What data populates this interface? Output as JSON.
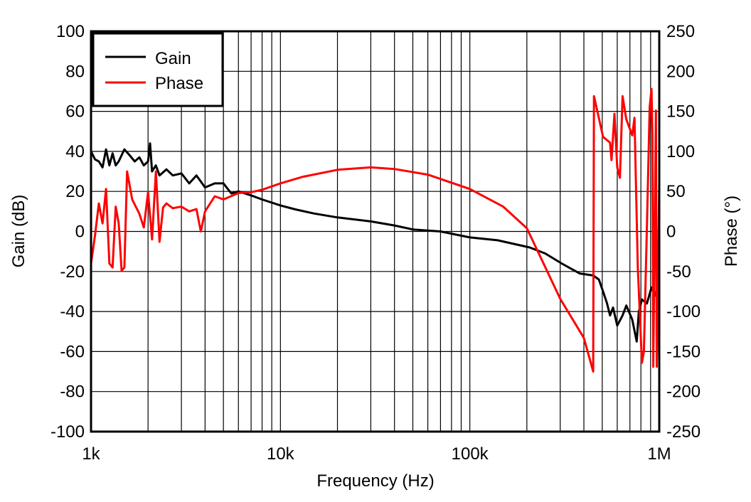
{
  "chart_data": {
    "type": "line",
    "xlabel": "Frequency (Hz)",
    "ylabel": "Gain (dB)",
    "y2label": "Phase (°)",
    "xscale": "log",
    "xlim": [
      1000,
      1000000
    ],
    "ylim": [
      -100,
      100
    ],
    "y2lim": [
      -250,
      250
    ],
    "grid": true,
    "legend_position": "top-left",
    "x_ticks": [
      {
        "v": 1000,
        "label": "1k"
      },
      {
        "v": 10000,
        "label": "10k"
      },
      {
        "v": 100000,
        "label": "100k"
      },
      {
        "v": 1000000,
        "label": "1M"
      }
    ],
    "y_ticks": [
      "-100",
      "-80",
      "-60",
      "-40",
      "-20",
      "0",
      "20",
      "40",
      "60",
      "80",
      "100"
    ],
    "y2_ticks": [
      "-250",
      "-200",
      "-150",
      "-100",
      "-50",
      "0",
      "50",
      "100",
      "150",
      "200",
      "250"
    ],
    "series": [
      {
        "name": "Gain",
        "axis": "left",
        "color": "#000000",
        "x": [
          1000,
          1050,
          1100,
          1150,
          1200,
          1250,
          1300,
          1350,
          1400,
          1500,
          1600,
          1700,
          1800,
          1900,
          2000,
          2050,
          2100,
          2200,
          2300,
          2500,
          2700,
          3000,
          3300,
          3600,
          4000,
          4500,
          5000,
          5500,
          6000,
          7000,
          8000,
          10000,
          12000,
          15000,
          20000,
          30000,
          40000,
          50000,
          70000,
          100000,
          140000,
          207000,
          250000,
          305000,
          380000,
          448000,
          480000,
          505000,
          530000,
          550000,
          570000,
          600000,
          640000,
          670000,
          720000,
          760000,
          780000,
          810000,
          860000,
          910000,
          950000,
          1000000
        ],
        "y": [
          40,
          36,
          35,
          32,
          41,
          33,
          39,
          33,
          35,
          41,
          38,
          35,
          37,
          33,
          35,
          44,
          30,
          33,
          28,
          31,
          28,
          29,
          24,
          28,
          22,
          24,
          24,
          19,
          20,
          18,
          16,
          13,
          11,
          9,
          7,
          5,
          3,
          1,
          0,
          -3,
          -4.4,
          -8,
          -11,
          -16,
          -21,
          -22,
          -24,
          -30,
          -36,
          -42,
          -38,
          -47,
          -42,
          -37,
          -44,
          -55,
          -40,
          -34,
          -36,
          -28,
          -32,
          -25
        ]
      },
      {
        "name": "Phase",
        "axis": "right",
        "color": "#ff0000",
        "x": [
          1000,
          1050,
          1100,
          1150,
          1200,
          1250,
          1300,
          1350,
          1400,
          1450,
          1500,
          1550,
          1650,
          1800,
          1900,
          2000,
          2100,
          2200,
          2300,
          2400,
          2500,
          2700,
          3000,
          3300,
          3600,
          3800,
          4000,
          4500,
          5000,
          6000,
          7000,
          8000,
          10000,
          13000,
          20000,
          30000,
          40000,
          60000,
          100000,
          150000,
          200000,
          300000,
          400000,
          448000,
          452000,
          505000,
          550000,
          560000,
          580000,
          600000,
          620000,
          640000,
          670000,
          720000,
          740000,
          750000,
          770000,
          810000,
          830000,
          860000,
          890000,
          910000,
          920000,
          930000,
          960000,
          970000,
          1000000
        ],
        "y": [
          -40,
          -5,
          35,
          10,
          53,
          -40,
          -45,
          31,
          10,
          -49,
          -45,
          75,
          40,
          22,
          5,
          49,
          -10,
          75,
          -13,
          30,
          35,
          29,
          31,
          25,
          28,
          0,
          25,
          44,
          40,
          48,
          49,
          52,
          60,
          68,
          77,
          80,
          78,
          71,
          53,
          31,
          4,
          -84,
          -133,
          -175,
          169,
          118,
          111,
          89,
          147,
          80,
          67,
          169,
          140,
          120,
          142,
          80,
          -44,
          -164,
          -150,
          4,
          155,
          178,
          120,
          -169,
          151,
          -169,
          60
        ]
      }
    ]
  }
}
